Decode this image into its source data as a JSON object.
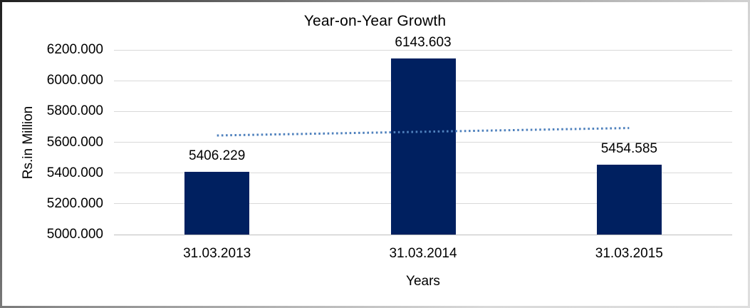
{
  "chart_data": {
    "type": "bar",
    "title": "Year-on-Year Growth",
    "xlabel": "Years",
    "ylabel": "Rs.in Million",
    "categories": [
      "31.03.2013",
      "31.03.2014",
      "31.03.2015"
    ],
    "series": [
      {
        "name": "Rs.in Million",
        "values": [
          5406.229,
          6143.603,
          5454.585
        ],
        "data_labels": [
          "5406.229",
          "6143.603",
          "5454.585"
        ]
      }
    ],
    "ylim": [
      5000,
      6200
    ],
    "ytick_values": [
      5000,
      5200,
      5400,
      5600,
      5800,
      6000,
      6200
    ],
    "ytick_labels": [
      "5000.000",
      "5200.000",
      "5400.000",
      "5600.000",
      "5800.000",
      "6000.000",
      "6200.000"
    ],
    "grid": true,
    "legend": "none",
    "trendline": {
      "type": "linear",
      "style": "dotted",
      "span": "first-to-last-category-center"
    },
    "colors": {
      "bar": "#002060",
      "trendline": "#4f81bd",
      "gridline": "#d9d9d9",
      "axis_line": "#bfbfbf",
      "text": "#000000",
      "background": "#ffffff"
    }
  }
}
